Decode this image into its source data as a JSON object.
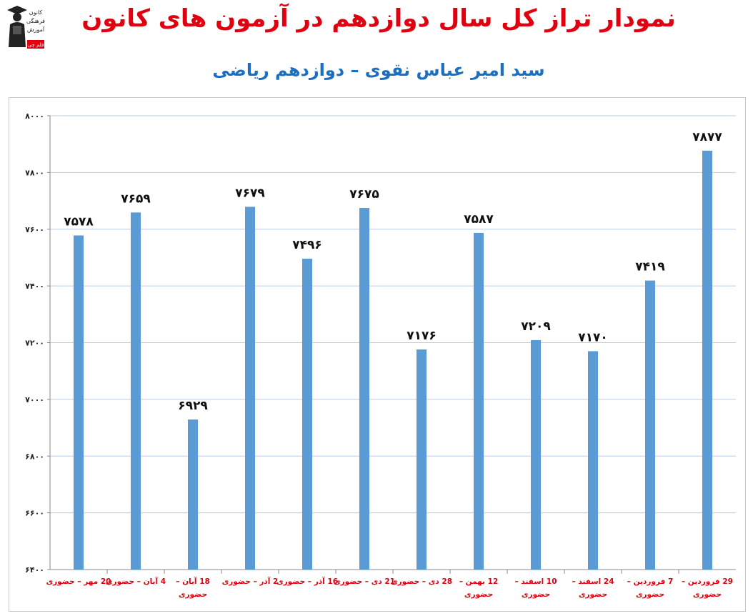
{
  "header": {
    "title": "نمودار تراز کل سال دوازدهم در آزمون های کانون",
    "subtitle": "سید امیر عباس نقوی – دوازدهم ریاضی"
  },
  "logo": {
    "icon": "graduate-icon",
    "text_lines": [
      "کانون",
      "فرهنگی",
      "آموزش",
      "قلم چی"
    ]
  },
  "colors": {
    "bar": "#5b9bd5",
    "title": "#e0000f",
    "subtitle": "#1b6fc2",
    "category_label": "#e0000f",
    "grid": "#b9cde5"
  },
  "chart_data": {
    "type": "bar",
    "title": "",
    "xlabel": "",
    "ylabel": "",
    "ylim": [
      6400,
      8000
    ],
    "yticks": [
      "۶۴۰۰",
      "۶۶۰۰",
      "۶۸۰۰",
      "۷۰۰۰",
      "۷۲۰۰",
      "۷۴۰۰",
      "۷۶۰۰",
      "۷۸۰۰",
      "۸۰۰۰"
    ],
    "ytick_values": [
      6400,
      6600,
      6800,
      7000,
      7200,
      7400,
      7600,
      7800,
      8000
    ],
    "grid": true,
    "categories": [
      [
        "20 مهر – حضوری"
      ],
      [
        "4 آبان – حضوری"
      ],
      [
        "18 آبان –",
        "حضوری"
      ],
      [
        "2 آذر – حضوری"
      ],
      [
        "16 آذر – حضوری"
      ],
      [
        "21 دی – حضوری"
      ],
      [
        "28 دی – حضوری"
      ],
      [
        "12 بهمن –",
        "حضوری"
      ],
      [
        "10 اسفند –",
        "حضوری"
      ],
      [
        "24 اسفند –",
        "حضوری"
      ],
      [
        "7 فروردین –",
        "حضوری"
      ],
      [
        "29 فروردین –",
        "حضوری"
      ]
    ],
    "values": [
      7578,
      7659,
      6929,
      7679,
      7496,
      7675,
      7176,
      7587,
      7209,
      7170,
      7419,
      7877
    ],
    "data_labels": [
      "۷۵۷۸",
      "۷۶۵۹",
      "۶۹۲۹",
      "۷۶۷۹",
      "۷۴۹۶",
      "۷۶۷۵",
      "۷۱۷۶",
      "۷۵۸۷",
      "۷۲۰۹",
      "۷۱۷۰",
      "۷۴۱۹",
      "۷۸۷۷"
    ]
  }
}
